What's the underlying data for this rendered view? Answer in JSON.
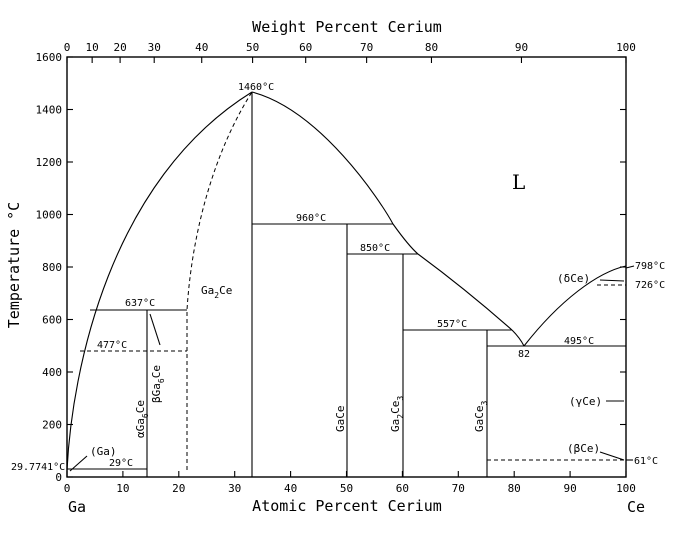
{
  "chart_data": {
    "type": "phase-diagram",
    "xlabel_bottom": "Atomic Percent Cerium",
    "xlabel_top": "Weight Percent Cerium",
    "ylabel": "Temperature °C",
    "xlim": [
      0,
      100
    ],
    "ylim": [
      0,
      1600
    ],
    "x_ticks": [
      0,
      10,
      20,
      30,
      40,
      50,
      60,
      70,
      80,
      90,
      100
    ],
    "y_ticks": [
      0,
      200,
      400,
      600,
      800,
      1000,
      1200,
      1400,
      1600
    ],
    "top_ticks": [
      {
        "wt": 0,
        "at": 0
      },
      {
        "wt": 10,
        "at": 4.5
      },
      {
        "wt": 20,
        "at": 9.5
      },
      {
        "wt": 30,
        "at": 15.6
      },
      {
        "wt": 40,
        "at": 24.1
      },
      {
        "wt": 50,
        "at": 33.2
      },
      {
        "wt": 60,
        "at": 42.7
      },
      {
        "wt": 70,
        "at": 53.6
      },
      {
        "wt": 80,
        "at": 65.2
      },
      {
        "wt": 90,
        "at": 81.3
      },
      {
        "wt": 100,
        "at": 100
      }
    ],
    "endpoints": {
      "left": "Ga",
      "right": "Ce"
    },
    "liquid_label": "L",
    "phases": [
      {
        "name": "αGa₆Ce / βGa₆Ce",
        "label_a": "αGa",
        "sub_a": "6",
        "suffix_a": "Ce",
        "label_b": "βGa",
        "sub_b": "6",
        "suffix_b": "Ce",
        "x": 14.3
      },
      {
        "name": "Ga₂Ce",
        "label": "Ga",
        "sub": "2",
        "suffix": "Ce",
        "x": 33.3
      },
      {
        "name": "GaCe",
        "label": "GaCe",
        "x": 50
      },
      {
        "name": "Ga₂Ce₃",
        "label": "Ga",
        "sub": "2",
        "mid": "Ce",
        "sub2": "3",
        "x": 60
      },
      {
        "name": "GaCe₃",
        "label": "GaCe",
        "sub": "3",
        "x": 75
      }
    ],
    "temperatures": [
      {
        "label": "1460°C",
        "x": 33.3,
        "y": 1460
      },
      {
        "label": "960°C",
        "x": 44,
        "y": 960
      },
      {
        "label": "850°C",
        "x": 56,
        "y": 850
      },
      {
        "label": "637°C",
        "x": 13,
        "y": 637
      },
      {
        "label": "477°C",
        "x": 8.5,
        "y": 477
      },
      {
        "label": "557°C",
        "x": 69,
        "y": 557
      },
      {
        "label": "495°C",
        "x": 91,
        "y": 495
      },
      {
        "label": "29°C",
        "x": 9.5,
        "y": 29
      },
      {
        "label": "29.7741°C",
        "x": 0,
        "y": 29.77
      },
      {
        "label": "798°C",
        "x": 100,
        "y": 798
      },
      {
        "label": "726°C",
        "x": 100,
        "y": 726
      },
      {
        "label": "61°C",
        "x": 100,
        "y": 61
      }
    ],
    "eutectic_composition": "82",
    "solid_solutions": [
      "(Ga)",
      "(δCe)",
      "(γCe)",
      "(βCe)"
    ]
  }
}
